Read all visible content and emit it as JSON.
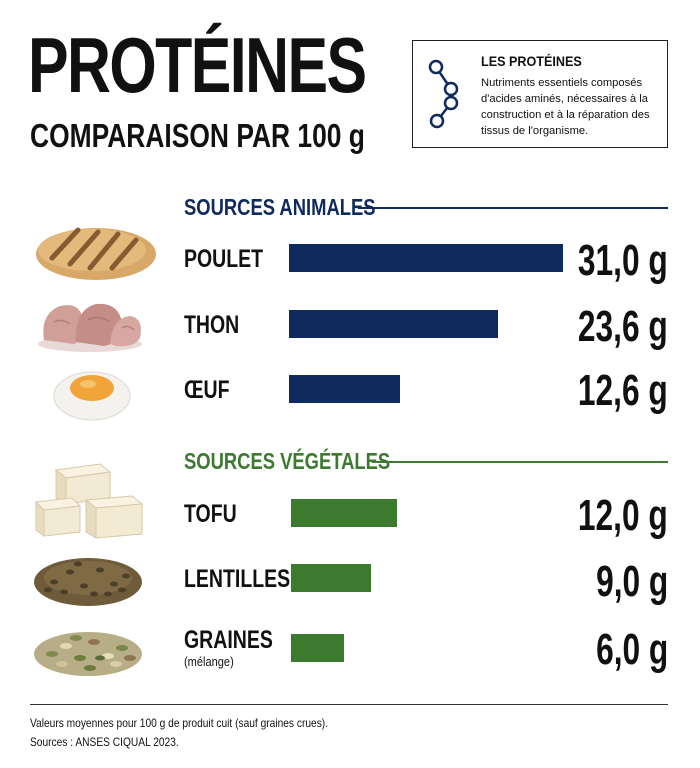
{
  "title": "PROTÉINES",
  "subtitle": "COMPARAISON PAR 100 g",
  "info_box": {
    "title": "LES PROTÉINES",
    "text": "Nutriments essentiels composés d'acides aminés, nécessaires à la construction et à la réparation des tissus de l'organisme."
  },
  "colors": {
    "animal": "#0f2a5c",
    "vegetal": "#3c7a2f"
  },
  "chart_data": {
    "type": "bar",
    "orientation": "horizontal",
    "unit": "g",
    "groups": [
      {
        "name": "SOURCES ANIMALES",
        "items": [
          {
            "label": "POULET",
            "value": 31.0,
            "display": "31,0 g",
            "icon": "grilled-chicken-icon"
          },
          {
            "label": "THON",
            "value": 23.6,
            "display": "23,6 g",
            "icon": "tuna-icon"
          },
          {
            "label": "ŒUF",
            "value": 12.6,
            "display": "12,6 g",
            "icon": "boiled-egg-icon"
          }
        ]
      },
      {
        "name": "SOURCES VÉGÉTALES",
        "items": [
          {
            "label": "TOFU",
            "value": 12.0,
            "display": "12,0 g",
            "icon": "tofu-icon"
          },
          {
            "label": "LENTILLES",
            "value": 9.0,
            "display": "9,0 g",
            "icon": "lentils-icon"
          },
          {
            "label": "GRAINES",
            "sublabel": "(mélange)",
            "value": 6.0,
            "display": "6,0 g",
            "icon": "seeds-icon"
          }
        ]
      }
    ],
    "xlim": [
      0,
      31.0
    ]
  },
  "footnote": {
    "line1": "Valeurs moyennes pour 100 g de produit cuit (sauf graines crues).",
    "line2": "Sources : ANSES CIQUAL 2023."
  }
}
